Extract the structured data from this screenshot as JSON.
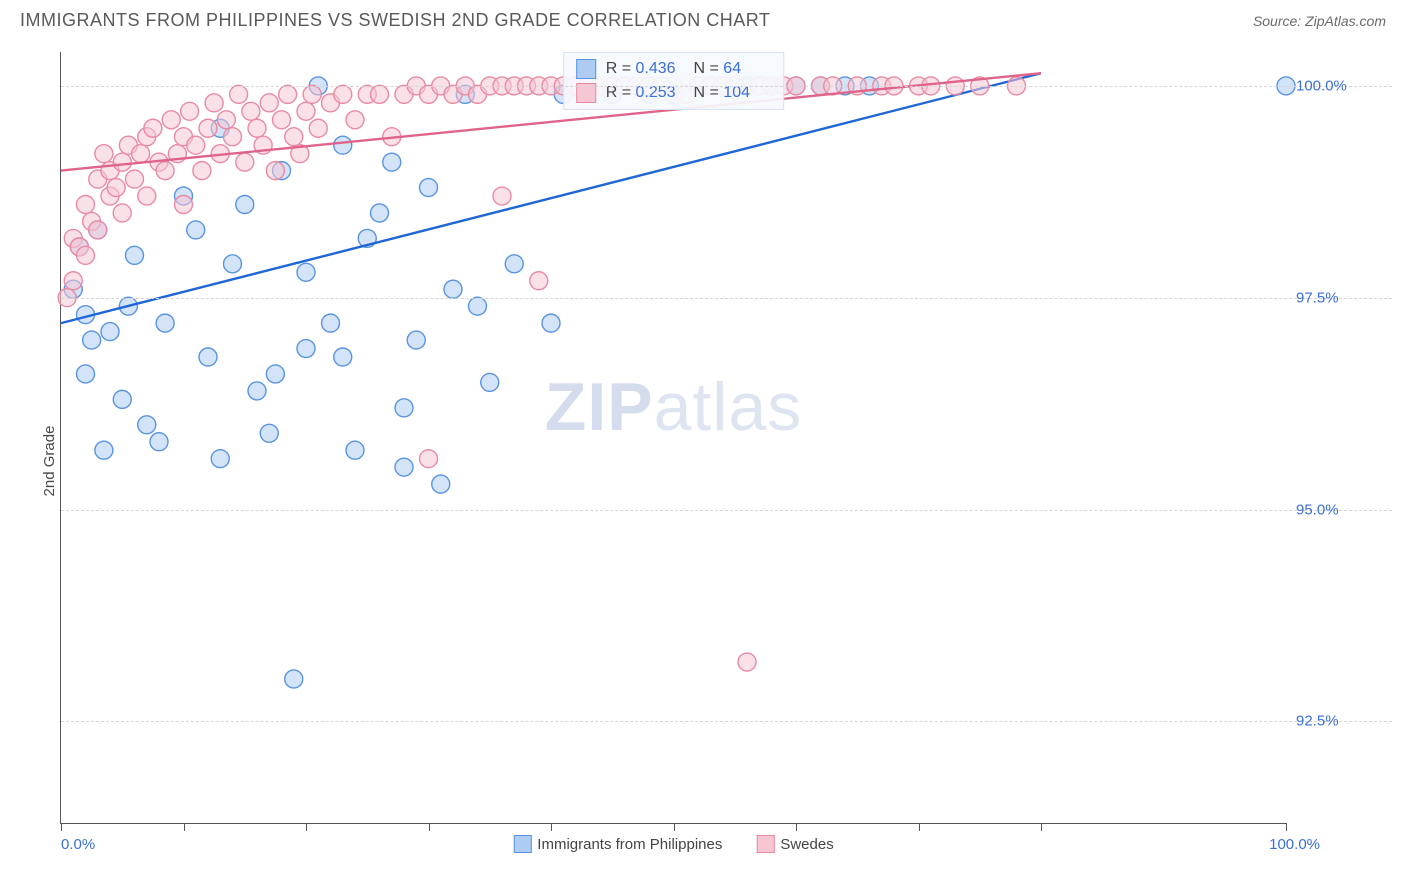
{
  "title": "IMMIGRANTS FROM PHILIPPINES VS SWEDISH 2ND GRADE CORRELATION CHART",
  "source_label": "Source: ",
  "source_value": "ZipAtlas.com",
  "watermark": {
    "bold": "ZIP",
    "rest": "atlas"
  },
  "y_axis_title": "2nd Grade",
  "chart": {
    "type": "scatter",
    "background_color": "#ffffff",
    "grid_color": "#d5d5d5",
    "axis_color": "#555555",
    "xlim": [
      0,
      100
    ],
    "ylim": [
      91.3,
      100.4
    ],
    "x_ticks": [
      0,
      10,
      20,
      30,
      40,
      50,
      60,
      70,
      80,
      100
    ],
    "x_tick_labels": {
      "0": "0.0%",
      "100": "100.0%"
    },
    "y_ticks": [
      92.5,
      95.0,
      97.5,
      100.0
    ],
    "y_tick_labels": [
      "92.5%",
      "95.0%",
      "97.5%",
      "100.0%"
    ],
    "marker_radius": 9,
    "marker_opacity": 0.55,
    "marker_stroke_width": 1.4,
    "line_width": 2.4,
    "series": [
      {
        "key": "philippines",
        "label": "Immigrants from Philippines",
        "fill_color": "#aeccf2",
        "stroke_color": "#5a94e0",
        "line_color": "#1f66d6",
        "trend": {
          "x1": 0,
          "y1": 97.2,
          "x2": 80,
          "y2": 100.15
        },
        "stats": {
          "R": "0.436",
          "N": "64"
        },
        "points": [
          [
            1,
            97.6
          ],
          [
            1.5,
            98.1
          ],
          [
            2,
            97.3
          ],
          [
            2,
            96.6
          ],
          [
            2.5,
            97.0
          ],
          [
            3,
            98.3
          ],
          [
            3.5,
            95.7
          ],
          [
            4,
            97.1
          ],
          [
            5,
            96.3
          ],
          [
            5.5,
            97.4
          ],
          [
            6,
            98.0
          ],
          [
            7,
            96.0
          ],
          [
            8,
            95.8
          ],
          [
            8.5,
            97.2
          ],
          [
            10,
            98.7
          ],
          [
            11,
            98.3
          ],
          [
            12,
            96.8
          ],
          [
            13,
            99.5
          ],
          [
            13,
            95.6
          ],
          [
            14,
            97.9
          ],
          [
            15,
            98.6
          ],
          [
            16,
            96.4
          ],
          [
            17,
            95.9
          ],
          [
            17.5,
            96.6
          ],
          [
            18,
            99.0
          ],
          [
            19,
            93.0
          ],
          [
            20,
            96.9
          ],
          [
            20,
            97.8
          ],
          [
            21,
            100.0
          ],
          [
            22,
            97.2
          ],
          [
            23,
            96.8
          ],
          [
            23,
            99.3
          ],
          [
            24,
            95.7
          ],
          [
            25,
            98.2
          ],
          [
            26,
            98.5
          ],
          [
            27,
            99.1
          ],
          [
            28,
            96.2
          ],
          [
            28,
            95.5
          ],
          [
            29,
            97.0
          ],
          [
            30,
            98.8
          ],
          [
            31,
            95.3
          ],
          [
            32,
            97.6
          ],
          [
            33,
            99.9
          ],
          [
            34,
            97.4
          ],
          [
            35,
            96.5
          ],
          [
            37,
            97.9
          ],
          [
            40,
            97.2
          ],
          [
            41,
            99.9
          ],
          [
            45,
            99.9
          ],
          [
            48,
            99.9
          ],
          [
            50,
            99.9
          ],
          [
            52,
            100.0
          ],
          [
            55,
            100.0
          ],
          [
            56,
            100.0
          ],
          [
            58,
            100.0
          ],
          [
            60,
            100.0
          ],
          [
            62,
            100.0
          ],
          [
            64,
            100.0
          ],
          [
            66,
            100.0
          ],
          [
            100,
            100.0
          ]
        ]
      },
      {
        "key": "swedes",
        "label": "Swedes",
        "fill_color": "#f6c7d3",
        "stroke_color": "#e98aa3",
        "line_color": "#e06389",
        "trend": {
          "x1": 0,
          "y1": 99.0,
          "x2": 80,
          "y2": 100.15
        },
        "stats": {
          "R": "0.253",
          "N": "104"
        },
        "points": [
          [
            0.5,
            97.5
          ],
          [
            1,
            97.7
          ],
          [
            1,
            98.2
          ],
          [
            1.5,
            98.1
          ],
          [
            2,
            98.6
          ],
          [
            2,
            98.0
          ],
          [
            2.5,
            98.4
          ],
          [
            3,
            98.9
          ],
          [
            3,
            98.3
          ],
          [
            3.5,
            99.2
          ],
          [
            4,
            98.7
          ],
          [
            4,
            99.0
          ],
          [
            4.5,
            98.8
          ],
          [
            5,
            99.1
          ],
          [
            5,
            98.5
          ],
          [
            5.5,
            99.3
          ],
          [
            6,
            98.9
          ],
          [
            6.5,
            99.2
          ],
          [
            7,
            99.4
          ],
          [
            7,
            98.7
          ],
          [
            7.5,
            99.5
          ],
          [
            8,
            99.1
          ],
          [
            8.5,
            99.0
          ],
          [
            9,
            99.6
          ],
          [
            9.5,
            99.2
          ],
          [
            10,
            99.4
          ],
          [
            10,
            98.6
          ],
          [
            10.5,
            99.7
          ],
          [
            11,
            99.3
          ],
          [
            11.5,
            99.0
          ],
          [
            12,
            99.5
          ],
          [
            12.5,
            99.8
          ],
          [
            13,
            99.2
          ],
          [
            13.5,
            99.6
          ],
          [
            14,
            99.4
          ],
          [
            14.5,
            99.9
          ],
          [
            15,
            99.1
          ],
          [
            15.5,
            99.7
          ],
          [
            16,
            99.5
          ],
          [
            16.5,
            99.3
          ],
          [
            17,
            99.8
          ],
          [
            17.5,
            99.0
          ],
          [
            18,
            99.6
          ],
          [
            18.5,
            99.9
          ],
          [
            19,
            99.4
          ],
          [
            19.5,
            99.2
          ],
          [
            20,
            99.7
          ],
          [
            20.5,
            99.9
          ],
          [
            21,
            99.5
          ],
          [
            22,
            99.8
          ],
          [
            23,
            99.9
          ],
          [
            24,
            99.6
          ],
          [
            25,
            99.9
          ],
          [
            26,
            99.9
          ],
          [
            27,
            99.4
          ],
          [
            28,
            99.9
          ],
          [
            29,
            100.0
          ],
          [
            30,
            99.9
          ],
          [
            30,
            95.6
          ],
          [
            31,
            100.0
          ],
          [
            32,
            99.9
          ],
          [
            33,
            100.0
          ],
          [
            34,
            99.9
          ],
          [
            35,
            100.0
          ],
          [
            36,
            98.7
          ],
          [
            36,
            100.0
          ],
          [
            37,
            100.0
          ],
          [
            38,
            100.0
          ],
          [
            39,
            97.7
          ],
          [
            39,
            100.0
          ],
          [
            40,
            100.0
          ],
          [
            41,
            100.0
          ],
          [
            42,
            100.0
          ],
          [
            43,
            100.0
          ],
          [
            44,
            100.0
          ],
          [
            45,
            100.0
          ],
          [
            46,
            100.0
          ],
          [
            47,
            100.0
          ],
          [
            48,
            100.0
          ],
          [
            49,
            100.0
          ],
          [
            50,
            100.0
          ],
          [
            51,
            99.9
          ],
          [
            52,
            100.0
          ],
          [
            53,
            100.0
          ],
          [
            54,
            100.0
          ],
          [
            55,
            100.0
          ],
          [
            56,
            93.2
          ],
          [
            57,
            100.0
          ],
          [
            58,
            100.0
          ],
          [
            59,
            100.0
          ],
          [
            60,
            100.0
          ],
          [
            62,
            100.0
          ],
          [
            63,
            100.0
          ],
          [
            65,
            100.0
          ],
          [
            67,
            100.0
          ],
          [
            68,
            100.0
          ],
          [
            70,
            100.0
          ],
          [
            71,
            100.0
          ],
          [
            73,
            100.0
          ],
          [
            75,
            100.0
          ],
          [
            78,
            100.0
          ]
        ]
      }
    ]
  },
  "stats_labels": {
    "R": "R = ",
    "N": "N = "
  }
}
